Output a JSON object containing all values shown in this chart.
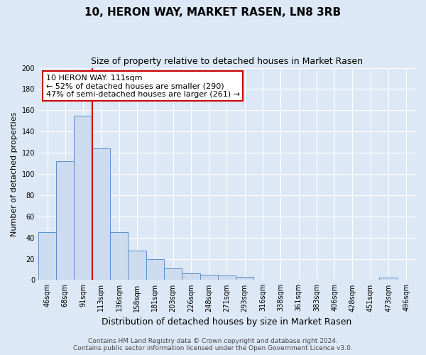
{
  "title": "10, HERON WAY, MARKET RASEN, LN8 3RB",
  "subtitle": "Size of property relative to detached houses in Market Rasen",
  "xlabel": "Distribution of detached houses by size in Market Rasen",
  "ylabel": "Number of detached properties",
  "bar_labels": [
    "46sqm",
    "68sqm",
    "91sqm",
    "113sqm",
    "136sqm",
    "158sqm",
    "181sqm",
    "203sqm",
    "226sqm",
    "248sqm",
    "271sqm",
    "293sqm",
    "316sqm",
    "338sqm",
    "361sqm",
    "383sqm",
    "406sqm",
    "428sqm",
    "451sqm",
    "473sqm",
    "496sqm"
  ],
  "bar_values": [
    45,
    112,
    155,
    124,
    45,
    28,
    20,
    11,
    6,
    5,
    4,
    3,
    0,
    0,
    0,
    0,
    0,
    0,
    0,
    2,
    0
  ],
  "bar_color": "#ccdcee",
  "bar_edge_color": "#5b8fc9",
  "vline_x": 2.5,
  "vline_color": "#cc0000",
  "annotation_text": "10 HERON WAY: 111sqm\n← 52% of detached houses are smaller (290)\n47% of semi-detached houses are larger (261) →",
  "annotation_box_color": "#ffffff",
  "annotation_box_edge": "#cc0000",
  "ylim": [
    0,
    200
  ],
  "yticks": [
    0,
    20,
    40,
    60,
    80,
    100,
    120,
    140,
    160,
    180,
    200
  ],
  "background_color": "#dce8f5",
  "plot_bg_color": "#dce8f5",
  "footer_line1": "Contains HM Land Registry data © Crown copyright and database right 2024.",
  "footer_line2": "Contains public sector information licensed under the Open Government Licence v3.0.",
  "title_fontsize": 11,
  "subtitle_fontsize": 9,
  "xlabel_fontsize": 9,
  "ylabel_fontsize": 8,
  "tick_fontsize": 7,
  "footer_fontsize": 6.5
}
